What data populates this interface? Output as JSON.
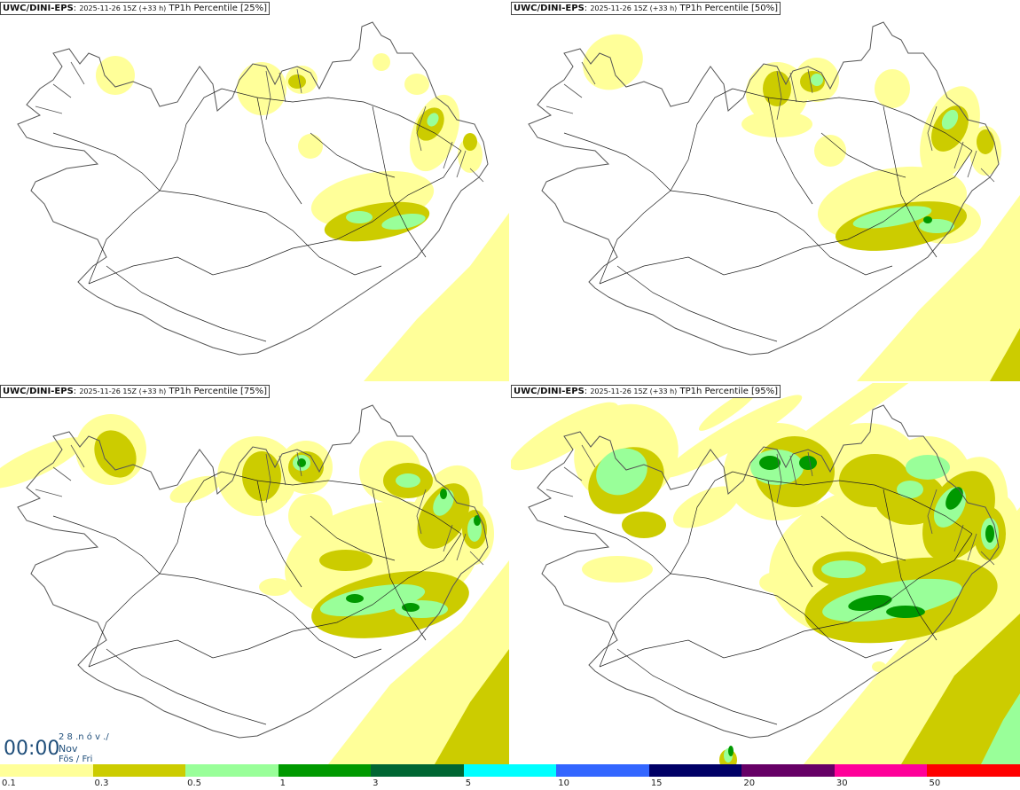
{
  "panels": [
    {
      "source": "UWC/DINI-EPS",
      "run": "2025-11-26 15Z (+33 h)",
      "field": "TP1h Percentile [25%]",
      "level": 0
    },
    {
      "source": "UWC/DINI-EPS",
      "run": "2025-11-26 15Z (+33 h)",
      "field": "TP1h Percentile [50%]",
      "level": 1
    },
    {
      "source": "UWC/DINI-EPS",
      "run": "2025-11-26 15Z (+33 h)",
      "field": "TP1h Percentile [75%]",
      "level": 2
    },
    {
      "source": "UWC/DINI-EPS",
      "run": "2025-11-26 15Z (+33 h)",
      "field": "TP1h Percentile [95%]",
      "level": 3
    }
  ],
  "clock": {
    "time": "00:00",
    "date_line": "2 8 .n ó v ./",
    "month": "Nov",
    "day": "Fös / Fri"
  },
  "legend": {
    "ticks": [
      "0.1",
      "0.3",
      "0.5",
      "1",
      "3",
      "5",
      "10",
      "15",
      "20",
      "30",
      "50"
    ],
    "colors": [
      "#ffff99",
      "#cccc00",
      "#99ff99",
      "#009900",
      "#006633",
      "#00ffff",
      "#3366ff",
      "#000066",
      "#660066",
      "#ff0099",
      "#ff0000"
    ]
  },
  "colors": {
    "light": "#ffff99",
    "mid": "#cccc00",
    "green": "#99ff99",
    "dark": "#009900",
    "coast": "#555555",
    "road": "#222222"
  }
}
